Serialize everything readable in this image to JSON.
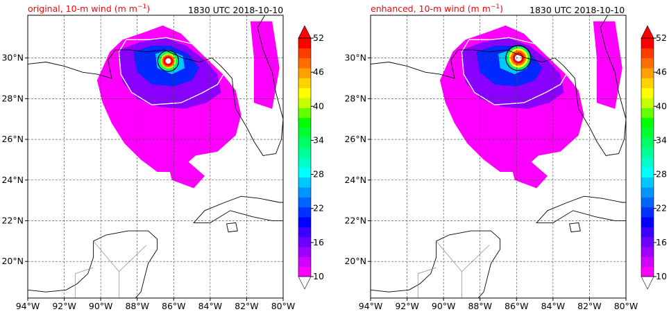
{
  "panels": [
    {
      "title_left": "original, 10-m wind",
      "title_units": "(m m",
      "title_units_exp": "−1",
      "title_units_close": ")",
      "title_right": "1830 UTC 2018-10-10"
    },
    {
      "title_left": "enhanced, 10-m wind",
      "title_units": "(m m",
      "title_units_exp": "−1",
      "title_units_close": ")",
      "title_right": "1830 UTC 2018-10-10"
    }
  ],
  "map": {
    "lon_ticks": [
      "94°W",
      "92°W",
      "90°W",
      "88°W",
      "86°W",
      "84°W",
      "82°W",
      "80°W"
    ],
    "lat_ticks": [
      "30°N",
      "28°N",
      "26°N",
      "24°N",
      "22°N",
      "20°N"
    ],
    "lon_range": [
      -94,
      -80
    ],
    "lat_range": [
      18.2,
      32.1
    ],
    "lon_values": [
      -94,
      -92,
      -90,
      -88,
      -86,
      -84,
      -82,
      -80
    ],
    "lat_values": [
      30,
      28,
      26,
      24,
      22,
      20
    ]
  },
  "colorbar": {
    "tick_labels": [
      "52",
      "46",
      "40",
      "34",
      "28",
      "22",
      "16",
      "10"
    ],
    "tick_values": [
      52,
      46,
      40,
      34,
      28,
      22,
      16,
      10
    ],
    "range": [
      10,
      52
    ],
    "colors": [
      "#ff00ff",
      "#d200ff",
      "#a000ff",
      "#6e00ff",
      "#3c00ff",
      "#0000ff",
      "#0032ff",
      "#0064ff",
      "#0096ff",
      "#00c8ff",
      "#00ffff",
      "#00ffc8",
      "#00ff96",
      "#00ff64",
      "#00ff32",
      "#00ff00",
      "#64ff00",
      "#c8ff00",
      "#ffff00",
      "#ffd200",
      "#ffa000",
      "#ff6e00",
      "#ff3c00",
      "#ff0000"
    ]
  }
}
